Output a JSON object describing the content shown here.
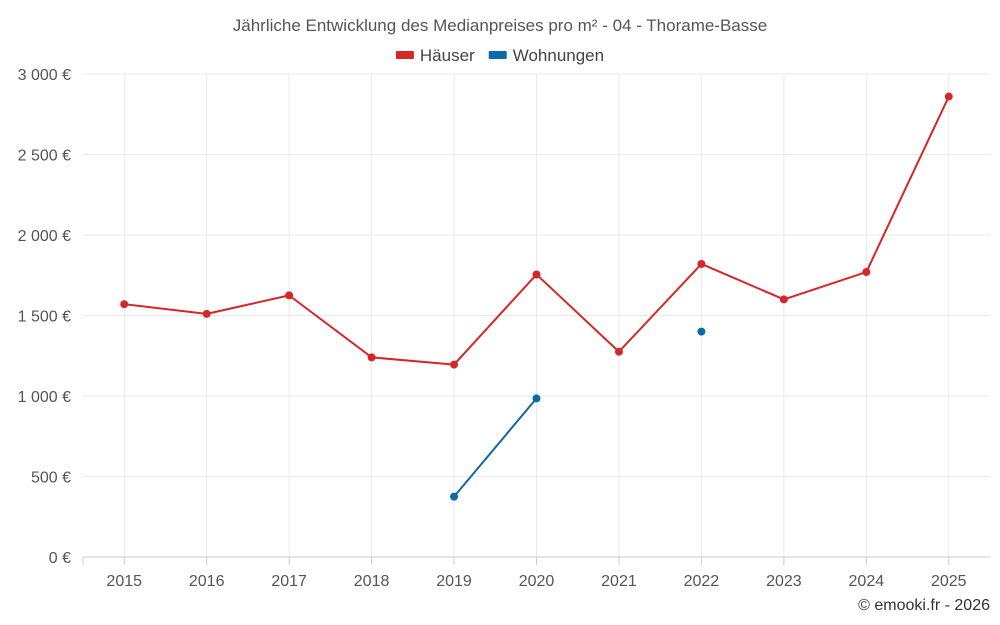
{
  "chart_data": {
    "type": "line",
    "title": "Jährliche Entwicklung des Medianpreises pro m² - 04 - Thorame-Basse",
    "xlabel": "",
    "ylabel": "",
    "categories": [
      "2015",
      "2016",
      "2017",
      "2018",
      "2019",
      "2020",
      "2021",
      "2022",
      "2023",
      "2024",
      "2025"
    ],
    "ylim": [
      0,
      3000
    ],
    "yticks": [
      0,
      500,
      1000,
      1500,
      2000,
      2500,
      3000
    ],
    "ytick_labels": [
      "0 €",
      "500 €",
      "1 000 €",
      "1 500 €",
      "2 000 €",
      "2 500 €",
      "3 000 €"
    ],
    "grid": true,
    "legend_position": "top-center",
    "series": [
      {
        "name": "Häuser",
        "color": "#d62728",
        "values": [
          1570,
          1510,
          1625,
          1240,
          1195,
          1755,
          1275,
          1820,
          1600,
          1770,
          2860
        ]
      },
      {
        "name": "Wohnungen",
        "color": "#0d6aa8",
        "values": [
          null,
          null,
          null,
          null,
          375,
          985,
          null,
          1400,
          null,
          null,
          null
        ]
      }
    ],
    "credit": "© emooki.fr - 2026"
  }
}
